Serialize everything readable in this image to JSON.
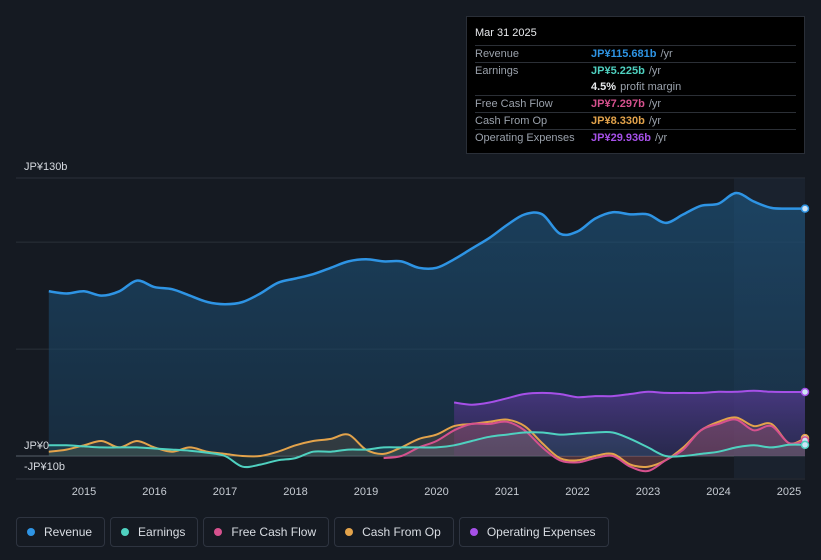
{
  "tooltip": {
    "date": "Mar 31 2025",
    "rows": [
      {
        "label": "Revenue",
        "value": "JP¥115.681b",
        "unit": "/yr",
        "color": "#2e94e4"
      },
      {
        "label": "Earnings",
        "value": "JP¥5.225b",
        "unit": "/yr",
        "color": "#4fd1c0"
      },
      {
        "label": "",
        "value": "4.5%",
        "unit": "profit margin",
        "color": "#e8eaed"
      },
      {
        "label": "Free Cash Flow",
        "value": "JP¥7.297b",
        "unit": "/yr",
        "color": "#d6518e"
      },
      {
        "label": "Cash From Op",
        "value": "JP¥8.330b",
        "unit": "/yr",
        "color": "#e3a34b"
      },
      {
        "label": "Operating Expenses",
        "value": "JP¥29.936b",
        "unit": "/yr",
        "color": "#a650e8"
      }
    ]
  },
  "legend": [
    {
      "label": "Revenue",
      "color": "#2e94e4"
    },
    {
      "label": "Earnings",
      "color": "#4fd1c0"
    },
    {
      "label": "Free Cash Flow",
      "color": "#d6518e"
    },
    {
      "label": "Cash From Op",
      "color": "#e3a34b"
    },
    {
      "label": "Operating Expenses",
      "color": "#a650e8"
    }
  ],
  "chart_data": {
    "type": "area",
    "title": "",
    "ylim": [
      -10,
      130
    ],
    "y_tick_labels": [
      {
        "label": "JP¥130b",
        "value": 130
      },
      {
        "label": "JP¥0",
        "value": 0
      },
      {
        "label": "-JP¥10b",
        "value": -10
      }
    ],
    "x_tick_labels": [
      "2015",
      "2016",
      "2017",
      "2018",
      "2019",
      "2020",
      "2021",
      "2022",
      "2023",
      "2024",
      "2025"
    ],
    "series": [
      {
        "name": "Revenue",
        "color": "#2e94e4",
        "x": [
          2014.5,
          2014.75,
          2015.0,
          2015.25,
          2015.5,
          2015.75,
          2016.0,
          2016.25,
          2016.5,
          2016.75,
          2017.0,
          2017.25,
          2017.5,
          2017.75,
          2018.0,
          2018.25,
          2018.5,
          2018.75,
          2019.0,
          2019.25,
          2019.5,
          2019.75,
          2020.0,
          2020.25,
          2020.5,
          2020.75,
          2021.0,
          2021.25,
          2021.5,
          2021.75,
          2022.0,
          2022.25,
          2022.5,
          2022.75,
          2023.0,
          2023.25,
          2023.5,
          2023.75,
          2024.0,
          2024.25,
          2024.5,
          2024.75,
          2025.0,
          2025.25
        ],
        "values": [
          77,
          76,
          77,
          75,
          77,
          82,
          79,
          78,
          75,
          72,
          71,
          72,
          76,
          81,
          83,
          85,
          88,
          91,
          92,
          91,
          91,
          88,
          88,
          92,
          97,
          102,
          108,
          113,
          113,
          104,
          105,
          111,
          114,
          113,
          113,
          109,
          113,
          117,
          118,
          123,
          119,
          116,
          115.681,
          115.681
        ]
      },
      {
        "name": "Earnings",
        "color": "#4fd1c0",
        "x": [
          2014.5,
          2014.75,
          2015.0,
          2015.25,
          2015.5,
          2015.75,
          2016.0,
          2016.25,
          2016.5,
          2016.75,
          2017.0,
          2017.25,
          2017.5,
          2017.75,
          2018.0,
          2018.25,
          2018.5,
          2018.75,
          2019.0,
          2019.25,
          2019.5,
          2019.75,
          2020.0,
          2020.25,
          2020.5,
          2020.75,
          2021.0,
          2021.25,
          2021.5,
          2021.75,
          2022.0,
          2022.25,
          2022.5,
          2022.75,
          2023.0,
          2023.25,
          2023.5,
          2023.75,
          2024.0,
          2024.25,
          2024.5,
          2024.75,
          2025.0,
          2025.25
        ],
        "values": [
          5,
          5,
          4.5,
          4,
          4,
          4,
          3.5,
          3,
          2.5,
          1.5,
          0,
          -5,
          -4,
          -2,
          -1,
          2,
          2,
          3,
          3,
          4,
          4,
          4,
          4,
          5,
          7,
          9,
          10,
          11,
          11,
          10,
          10.5,
          11,
          11,
          8,
          4,
          0,
          0,
          1,
          2,
          4,
          5,
          4,
          5.225,
          5.225
        ]
      },
      {
        "name": "Free Cash Flow",
        "color": "#d6518e",
        "x": [
          2019.25,
          2019.5,
          2019.75,
          2020.0,
          2020.25,
          2020.5,
          2020.75,
          2021.0,
          2021.25,
          2021.5,
          2021.75,
          2022.0,
          2022.25,
          2022.5,
          2022.75,
          2023.0,
          2023.25,
          2023.5,
          2023.75,
          2024.0,
          2024.25,
          2024.5,
          2024.75,
          2025.0,
          2025.25
        ],
        "values": [
          -1,
          0,
          4,
          7,
          12,
          15,
          15,
          16,
          12,
          4,
          -2,
          -3,
          -1,
          0,
          -5,
          -7,
          -2,
          3,
          12,
          15,
          17,
          12,
          14,
          6,
          7.297
        ]
      },
      {
        "name": "Cash From Op",
        "color": "#e3a34b",
        "x": [
          2014.5,
          2014.75,
          2015.0,
          2015.25,
          2015.5,
          2015.75,
          2016.0,
          2016.25,
          2016.5,
          2016.75,
          2017.0,
          2017.25,
          2017.5,
          2017.75,
          2018.0,
          2018.25,
          2018.5,
          2018.75,
          2019.0,
          2019.25,
          2019.5,
          2019.75,
          2020.0,
          2020.25,
          2020.5,
          2020.75,
          2021.0,
          2021.25,
          2021.5,
          2021.75,
          2022.0,
          2022.25,
          2022.5,
          2022.75,
          2023.0,
          2023.25,
          2023.5,
          2023.75,
          2024.0,
          2024.25,
          2024.5,
          2024.75,
          2025.0,
          2025.25
        ],
        "values": [
          2,
          3,
          5,
          7,
          4,
          7,
          4,
          2,
          4,
          2,
          1,
          0,
          0,
          2,
          5,
          7,
          8,
          10,
          3,
          1,
          4,
          8,
          10,
          14,
          15,
          16,
          17,
          14,
          6,
          -1,
          -2,
          0,
          1,
          -4,
          -5,
          -2,
          4,
          12,
          16,
          18,
          14,
          15,
          6,
          8.33
        ]
      },
      {
        "name": "Operating Expenses",
        "color": "#a650e8",
        "x": [
          2020.25,
          2020.5,
          2020.75,
          2021.0,
          2021.25,
          2021.5,
          2021.75,
          2022.0,
          2022.25,
          2022.5,
          2022.75,
          2023.0,
          2023.25,
          2023.5,
          2023.75,
          2024.0,
          2024.25,
          2024.5,
          2024.75,
          2025.0,
          2025.25
        ],
        "values": [
          25,
          24,
          25,
          27,
          29,
          29.5,
          29,
          27.5,
          28,
          28,
          29,
          30,
          29.5,
          29.5,
          29.5,
          30,
          30,
          30.5,
          30,
          29.936,
          29.936
        ]
      }
    ]
  }
}
